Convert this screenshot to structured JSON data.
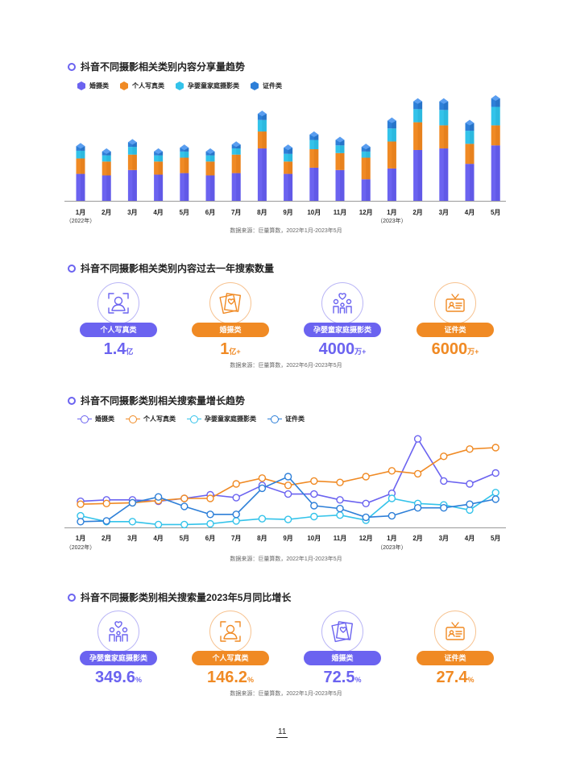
{
  "section1": {
    "title": "抖音不同摄影相关类别内容分享量趋势",
    "legend": [
      {
        "label": "婚摄类",
        "color": "#6b63f0"
      },
      {
        "label": "个人写真类",
        "color": "#f08a24"
      },
      {
        "label": "孕婴童家庭摄影类",
        "color": "#33c3ea"
      },
      {
        "label": "证件类",
        "color": "#2d7fd8"
      }
    ],
    "source": "数据来源：巨量算数，2022年1月-2023年5月"
  },
  "months": [
    "1月",
    "2月",
    "3月",
    "4月",
    "5月",
    "6月",
    "7月",
    "8月",
    "9月",
    "10月",
    "11月",
    "12月",
    "1月",
    "2月",
    "3月",
    "4月",
    "5月"
  ],
  "year_notes": {
    "y2022": "（2022年）",
    "y2023": "（2023年）"
  },
  "chart_data": [
    {
      "type": "bar",
      "stacked": true,
      "title": "抖音不同摄影相关类别内容分享量趋势",
      "categories": [
        "1月",
        "2月",
        "3月",
        "4月",
        "5月",
        "6月",
        "7月",
        "8月",
        "9月",
        "10月",
        "11月",
        "12月",
        "1月",
        "2月",
        "3月",
        "4月",
        "5月"
      ],
      "series": [
        {
          "name": "婚摄类",
          "values": [
            35,
            33,
            40,
            34,
            36,
            33,
            36,
            68,
            35,
            43,
            40,
            28,
            42,
            66,
            68,
            48,
            72
          ]
        },
        {
          "name": "个人写真类",
          "values": [
            20,
            18,
            20,
            17,
            20,
            18,
            24,
            22,
            16,
            24,
            22,
            28,
            35,
            36,
            30,
            26,
            26
          ]
        },
        {
          "name": "孕婴童家庭摄影类",
          "values": [
            10,
            8,
            10,
            8,
            8,
            8,
            8,
            15,
            10,
            12,
            10,
            8,
            17,
            17,
            20,
            17,
            24
          ]
        },
        {
          "name": "证件类",
          "values": [
            6,
            5,
            6,
            5,
            5,
            5,
            5,
            8,
            8,
            7,
            7,
            6,
            10,
            10,
            11,
            10,
            11
          ]
        }
      ],
      "ylim": [
        0,
        140
      ],
      "xlabel": "",
      "ylabel": ""
    },
    {
      "type": "line",
      "title": "抖音不同摄影类别相关搜索量增长趋势",
      "categories": [
        "1月",
        "2月",
        "3月",
        "4月",
        "5月",
        "6月",
        "7月",
        "8月",
        "9月",
        "10月",
        "11月",
        "12月",
        "1月",
        "2月",
        "3月",
        "4月",
        "5月"
      ],
      "series": [
        {
          "name": "婚摄类",
          "values": [
            36,
            38,
            38,
            36,
            40,
            45,
            41,
            58,
            46,
            46,
            38,
            33,
            47,
            122,
            64,
            60,
            75
          ]
        },
        {
          "name": "个人写真类",
          "values": [
            32,
            33,
            34,
            37,
            40,
            40,
            60,
            68,
            58,
            64,
            62,
            70,
            78,
            74,
            98,
            108,
            110
          ]
        },
        {
          "name": "孕婴童家庭摄影类",
          "values": [
            16,
            8,
            8,
            4,
            4,
            5,
            9,
            12,
            11,
            15,
            17,
            10,
            40,
            33,
            31,
            24,
            48
          ]
        },
        {
          "name": "证件类",
          "values": [
            8,
            9,
            34,
            42,
            29,
            18,
            18,
            54,
            70,
            30,
            26,
            14,
            16,
            27,
            27,
            32,
            39
          ]
        }
      ],
      "ylim": [
        0,
        130
      ],
      "xlabel": "",
      "ylabel": ""
    }
  ],
  "section2": {
    "title": "抖音不同摄影相关类别内容过去一年搜索数量",
    "source": "数据来源：巨量算数，2022年6月-2023年5月",
    "cards": [
      {
        "label": "个人写真类",
        "value": "1.4",
        "unit": "亿",
        "color": "#6b63f0",
        "icon": "portrait-icon"
      },
      {
        "label": "婚摄类",
        "value": "1",
        "unit": "亿+",
        "color": "#f08a24",
        "icon": "wedding-photos-icon"
      },
      {
        "label": "孕婴童家庭摄影类",
        "value": "4000",
        "unit": "万+",
        "color": "#6b63f0",
        "icon": "family-icon"
      },
      {
        "label": "证件类",
        "value": "6000",
        "unit": "万+",
        "color": "#f08a24",
        "icon": "id-card-icon"
      }
    ]
  },
  "section3": {
    "title": "抖音不同摄影类别相关搜索量增长趋势",
    "legend": [
      {
        "label": "婚摄类",
        "color": "#6b63f0"
      },
      {
        "label": "个人写真类",
        "color": "#f08a24"
      },
      {
        "label": "孕婴童家庭摄影类",
        "color": "#33c3ea"
      },
      {
        "label": "证件类",
        "color": "#2d7fd8"
      }
    ],
    "source": "数据来源：巨量算数，2022年1月-2023年5月"
  },
  "section4": {
    "title": "抖音不同摄影类别相关搜索量2023年5月同比增长",
    "source": "数据来源：巨量算数，2022年1月-2023年5月",
    "cards": [
      {
        "label": "孕婴童家庭摄影类",
        "value": "349.6",
        "unit": "%",
        "color": "#6b63f0",
        "icon": "family-icon"
      },
      {
        "label": "个人写真类",
        "value": "146.2",
        "unit": "%",
        "color": "#f08a24",
        "icon": "portrait-icon"
      },
      {
        "label": "婚摄类",
        "value": "72.5",
        "unit": "%",
        "color": "#6b63f0",
        "icon": "wedding-photos-icon"
      },
      {
        "label": "证件类",
        "value": "27.4",
        "unit": "%",
        "color": "#f08a24",
        "icon": "id-card-icon"
      }
    ]
  },
  "page_number": "11"
}
